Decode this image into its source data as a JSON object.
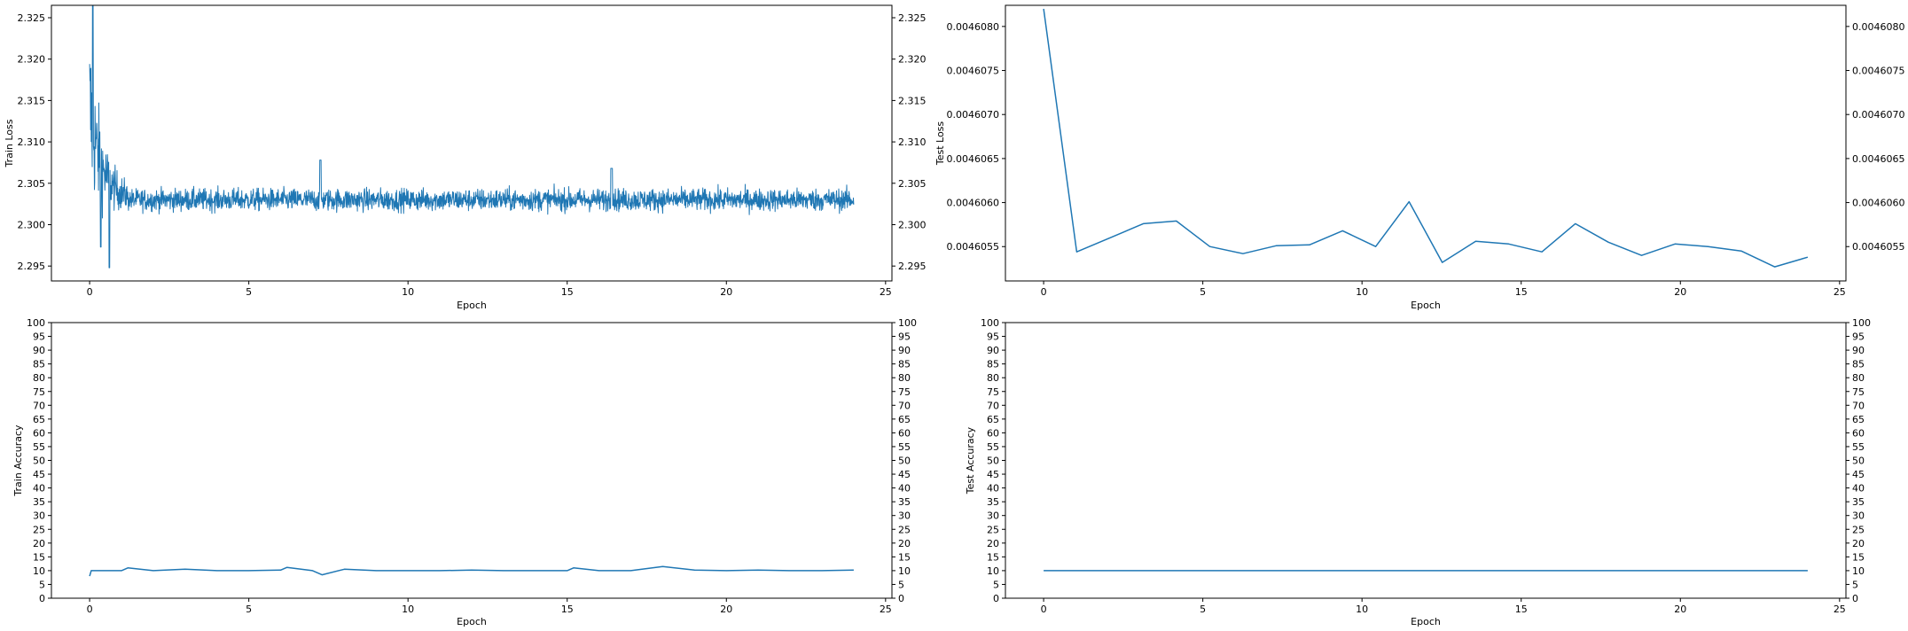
{
  "colors": {
    "series": "#1f77b4",
    "axes": "#000000",
    "background": "#ffffff"
  },
  "chart_data": [
    {
      "id": "train-loss",
      "type": "line",
      "title": "",
      "xlabel": "Epoch",
      "ylabel": "Train Loss",
      "xlim": [
        -1.2,
        25.2
      ],
      "ylim": [
        2.2932,
        2.3265
      ],
      "x_ticks": [
        "0",
        "5",
        "10",
        "15",
        "20",
        "25"
      ],
      "y_ticks": [
        "2.295",
        "2.300",
        "2.305",
        "2.310",
        "2.315",
        "2.320",
        "2.325"
      ],
      "y_ticks_right": true,
      "grid": false,
      "series": [
        {
          "x": [
            0.0,
            0.05,
            0.1,
            0.15,
            0.2,
            0.3,
            0.4,
            0.5,
            0.6,
            0.7,
            0.8,
            0.9,
            1.0,
            1.2,
            1.5,
            2.0,
            3.0,
            4.0,
            5.0,
            6.0,
            7.0,
            7.3,
            8.0,
            9.0,
            10.0,
            11.0,
            12.0,
            13.0,
            14.0,
            15.0,
            16.0,
            16.4,
            17.0,
            18.0,
            19.0,
            20.0,
            21.0,
            22.0,
            23.0,
            24.0
          ],
          "y": [
            2.3055,
            2.3225,
            2.3265,
            2.3185,
            2.31,
            2.3225,
            2.2975,
            2.313,
            2.295,
            2.311,
            2.3,
            2.306,
            2.303,
            2.304,
            2.303,
            2.3035,
            2.3025,
            2.303,
            2.304,
            2.303,
            2.303,
            2.308,
            2.303,
            2.303,
            2.303,
            2.303,
            2.303,
            2.303,
            2.303,
            2.303,
            2.303,
            2.307,
            2.303,
            2.303,
            2.303,
            2.303,
            2.303,
            2.303,
            2.303,
            2.3025
          ]
        }
      ],
      "noise": "dense step-level oscillation of about ±0.0015 around 2.303 after epoch 1"
    },
    {
      "id": "test-loss",
      "type": "line",
      "title": "",
      "xlabel": "Epoch",
      "ylabel": "Test Loss",
      "xlim": [
        -1.2,
        25.2
      ],
      "ylim": [
        0.00460511,
        0.00460824
      ],
      "x_ticks": [
        "0",
        "5",
        "10",
        "15",
        "20",
        "25"
      ],
      "y_ticks": [
        "0.0046055",
        "0.0046060",
        "0.0046065",
        "0.0046070",
        "0.0046075",
        "0.0046080"
      ],
      "y_ticks_right": true,
      "grid": false,
      "series": [
        {
          "x": [
            0.0,
            1.04,
            2.09,
            3.13,
            4.17,
            5.22,
            6.26,
            7.3,
            8.35,
            9.39,
            10.43,
            11.48,
            12.52,
            13.57,
            14.61,
            15.65,
            16.7,
            17.74,
            18.78,
            19.83,
            20.87,
            21.91,
            22.96,
            24.0
          ],
          "y": [
            0.0046082,
            0.00460544,
            0.0046056,
            0.00460576,
            0.00460579,
            0.0046055,
            0.00460542,
            0.00460551,
            0.00460552,
            0.00460568,
            0.0046055,
            0.00460601,
            0.00460532,
            0.00460556,
            0.00460553,
            0.00460544,
            0.00460576,
            0.00460555,
            0.0046054,
            0.00460553,
            0.0046055,
            0.00460545,
            0.00460527,
            0.00460538
          ]
        }
      ]
    },
    {
      "id": "train-accuracy",
      "type": "line",
      "title": "",
      "xlabel": "Epoch",
      "ylabel": "Train Accuracy",
      "xlim": [
        -1.2,
        25.2
      ],
      "ylim": [
        0,
        100
      ],
      "x_ticks": [
        "0",
        "5",
        "10",
        "15",
        "20",
        "25"
      ],
      "y_ticks": [
        "0",
        "5",
        "10",
        "15",
        "20",
        "25",
        "30",
        "35",
        "40",
        "45",
        "50",
        "55",
        "60",
        "65",
        "70",
        "75",
        "80",
        "85",
        "90",
        "95",
        "100"
      ],
      "y_ticks_right": true,
      "grid": false,
      "series": [
        {
          "x": [
            0.0,
            0.05,
            0.5,
            1.0,
            1.2,
            2.0,
            3.0,
            4.0,
            5.0,
            6.0,
            6.2,
            7.0,
            7.3,
            8.0,
            9.0,
            10.0,
            11.0,
            12.0,
            13.0,
            14.0,
            15.0,
            15.2,
            16.0,
            17.0,
            18.0,
            19.0,
            20.0,
            21.0,
            22.0,
            23.0,
            24.0
          ],
          "y": [
            8.0,
            10.0,
            10.0,
            10.0,
            11.0,
            10.0,
            10.5,
            10.0,
            10.0,
            10.2,
            11.2,
            10.0,
            8.5,
            10.5,
            10.0,
            10.0,
            10.0,
            10.2,
            10.0,
            10.0,
            10.0,
            11.0,
            10.0,
            10.0,
            11.5,
            10.2,
            10.0,
            10.2,
            10.0,
            10.0,
            10.2
          ]
        }
      ]
    },
    {
      "id": "test-accuracy",
      "type": "line",
      "title": "",
      "xlabel": "Epoch",
      "ylabel": "Test Accuracy",
      "xlim": [
        -1.2,
        25.2
      ],
      "ylim": [
        0,
        100
      ],
      "x_ticks": [
        "0",
        "5",
        "10",
        "15",
        "20",
        "25"
      ],
      "y_ticks": [
        "0",
        "5",
        "10",
        "15",
        "20",
        "25",
        "30",
        "35",
        "40",
        "45",
        "50",
        "55",
        "60",
        "65",
        "70",
        "75",
        "80",
        "85",
        "90",
        "95",
        "100"
      ],
      "y_ticks_right": true,
      "grid": false,
      "series": [
        {
          "x": [
            0,
            24
          ],
          "y": [
            10,
            10
          ]
        }
      ]
    }
  ]
}
